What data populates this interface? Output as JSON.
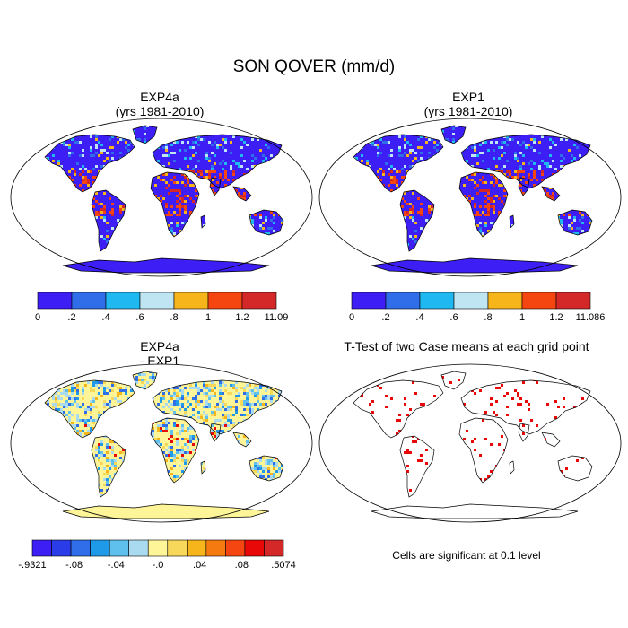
{
  "figure": {
    "title": "SON QOVER (mm/d)"
  },
  "panels": [
    {
      "title_line1": "EXP4a",
      "title_line2": "(yrs 1981-2010)",
      "colorbar": {
        "colors": [
          "#3d1ef5",
          "#2f6ee8",
          "#20b8f0",
          "#bfe5f2",
          "#f7b51c",
          "#f54510",
          "#d42828"
        ],
        "labels": [
          "0",
          ".2",
          ".4",
          ".6",
          ".8",
          "1",
          "1.2",
          "11.09"
        ]
      }
    },
    {
      "title_line1": "EXP1",
      "title_line2": "(yrs 1981-2010)",
      "colorbar": {
        "colors": [
          "#3d1ef5",
          "#2f6ee8",
          "#20b8f0",
          "#bfe5f2",
          "#f7b51c",
          "#f54510",
          "#d42828"
        ],
        "labels": [
          "0",
          ".2",
          ".4",
          ".6",
          ".8",
          "1",
          "1.2",
          "11.086"
        ]
      }
    },
    {
      "title_line1": "EXP4a",
      "title_line2": "- EXP1",
      "colorbar": {
        "colors": [
          "#3d1ef5",
          "#2a3ce8",
          "#2f6ee8",
          "#1f9ae8",
          "#5fc0ee",
          "#aadaf0",
          "#fdf598",
          "#f8d85a",
          "#f7b51c",
          "#f57a10",
          "#f54510",
          "#e80808",
          "#d42828"
        ],
        "labels": [
          "-.9321",
          "-.08",
          "-.04",
          "-.0",
          ".04",
          ".08",
          ".5074"
        ]
      }
    },
    {
      "title_line1": "T-Test of two Case means at each grid point",
      "note": "Cells are significant at 0.1 level"
    }
  ]
}
